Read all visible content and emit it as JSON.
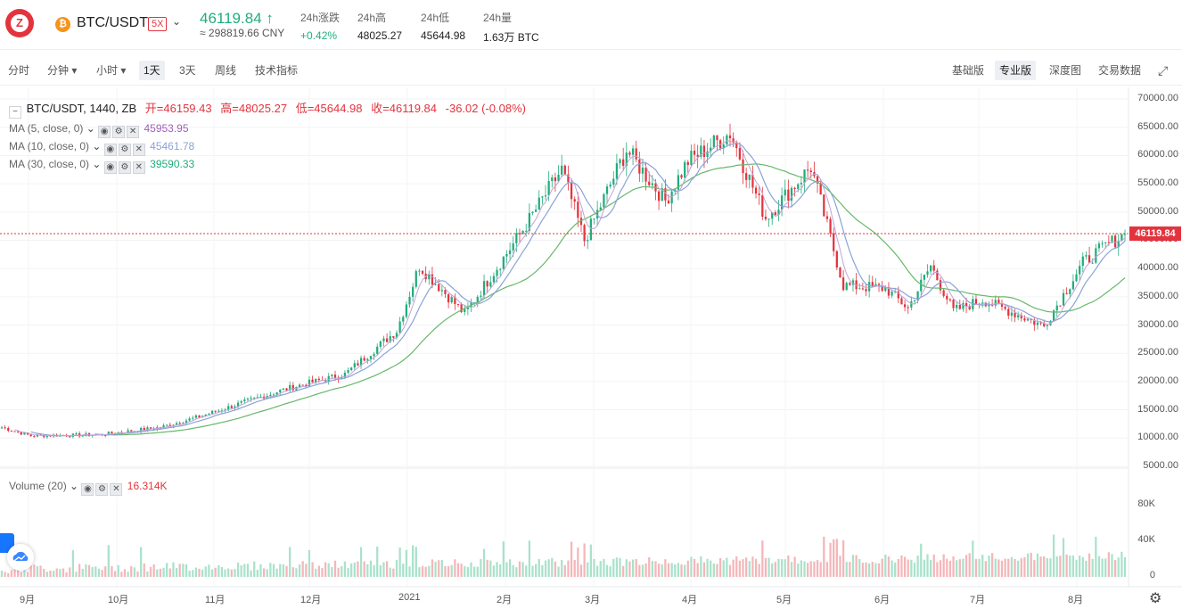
{
  "header": {
    "pair": "BTC/USDT",
    "leverage": "5X",
    "last_price": "46119.84",
    "cny_price": "≈ 298819.66 CNY",
    "stats": [
      {
        "label": "24h涨跌",
        "value": "+0.42%"
      },
      {
        "label": "24h高",
        "value": "48025.27"
      },
      {
        "label": "24h低",
        "value": "45644.98"
      },
      {
        "label": "24h量",
        "value": "1.63万 BTC"
      }
    ]
  },
  "toolbar": {
    "intervals": [
      "分时",
      "分钟",
      "小时",
      "1天",
      "3天",
      "周线",
      "技术指标"
    ],
    "active_interval": "1天",
    "views": [
      "基础版",
      "专业版",
      "深度图",
      "交易数据"
    ],
    "active_view": "专业版"
  },
  "legend": {
    "title": "BTC/USDT, 1440, ZB",
    "ohlc": {
      "open": "开=46159.43",
      "high": "高=48025.27",
      "low": "低=45644.98",
      "close": "收=46119.84",
      "change": "-36.02 (-0.08%)"
    },
    "ma": [
      {
        "label": "MA (5, close, 0)",
        "value": "45953.95",
        "color": "#9c61b7"
      },
      {
        "label": "MA (10, close, 0)",
        "value": "45461.78",
        "color": "#8aa3d6"
      },
      {
        "label": "MA (30, close, 0)",
        "value": "39590.33",
        "color": "#67b86a"
      }
    ],
    "volume": {
      "label": "Volume (20)",
      "value": "16.314K"
    }
  },
  "colors": {
    "up": "#21ad7b",
    "down": "#e3343e",
    "up_vol": "#a9e2cb",
    "down_vol": "#f5b6b9"
  },
  "chart_data": {
    "type": "candlestick",
    "y_ticks": [
      "70000.00",
      "65000.00",
      "60000.00",
      "55000.00",
      "50000.00",
      "45000.00",
      "40000.00",
      "35000.00",
      "30000.00",
      "25000.00",
      "20000.00",
      "15000.00",
      "10000.00",
      "5000.00"
    ],
    "volume_ticks": [
      "80K",
      "40K",
      "0"
    ],
    "x_ticks": [
      "9月",
      "10月",
      "11月",
      "12月",
      "2021",
      "2月",
      "3月",
      "4月",
      "5月",
      "6月",
      "7月",
      "8月"
    ],
    "current_price_tag": "46119.84",
    "ylim": [
      5000,
      70000
    ],
    "close_anchors": [
      [
        "2020-09-01",
        11900
      ],
      [
        "2020-09-10",
        10400
      ],
      [
        "2020-10-01",
        10600
      ],
      [
        "2020-10-20",
        11900
      ],
      [
        "2020-11-01",
        13800
      ],
      [
        "2020-11-25",
        18200
      ],
      [
        "2020-12-01",
        19200
      ],
      [
        "2020-12-16",
        21300
      ],
      [
        "2021-01-01",
        29000
      ],
      [
        "2021-01-08",
        40500
      ],
      [
        "2021-01-22",
        32000
      ],
      [
        "2021-02-08",
        46000
      ],
      [
        "2021-02-21",
        57500
      ],
      [
        "2021-02-28",
        45000
      ],
      [
        "2021-03-13",
        61000
      ],
      [
        "2021-03-25",
        52000
      ],
      [
        "2021-04-01",
        59000
      ],
      [
        "2021-04-14",
        64000
      ],
      [
        "2021-04-25",
        49000
      ],
      [
        "2021-05-09",
        58000
      ],
      [
        "2021-05-19",
        37000
      ],
      [
        "2021-06-01",
        36500
      ],
      [
        "2021-06-08",
        33000
      ],
      [
        "2021-06-15",
        40500
      ],
      [
        "2021-06-22",
        32500
      ],
      [
        "2021-07-01",
        34500
      ],
      [
        "2021-07-20",
        29800
      ],
      [
        "2021-08-01",
        41000
      ],
      [
        "2021-08-08",
        44000
      ],
      [
        "2021-08-14",
        46119.84
      ]
    ]
  }
}
